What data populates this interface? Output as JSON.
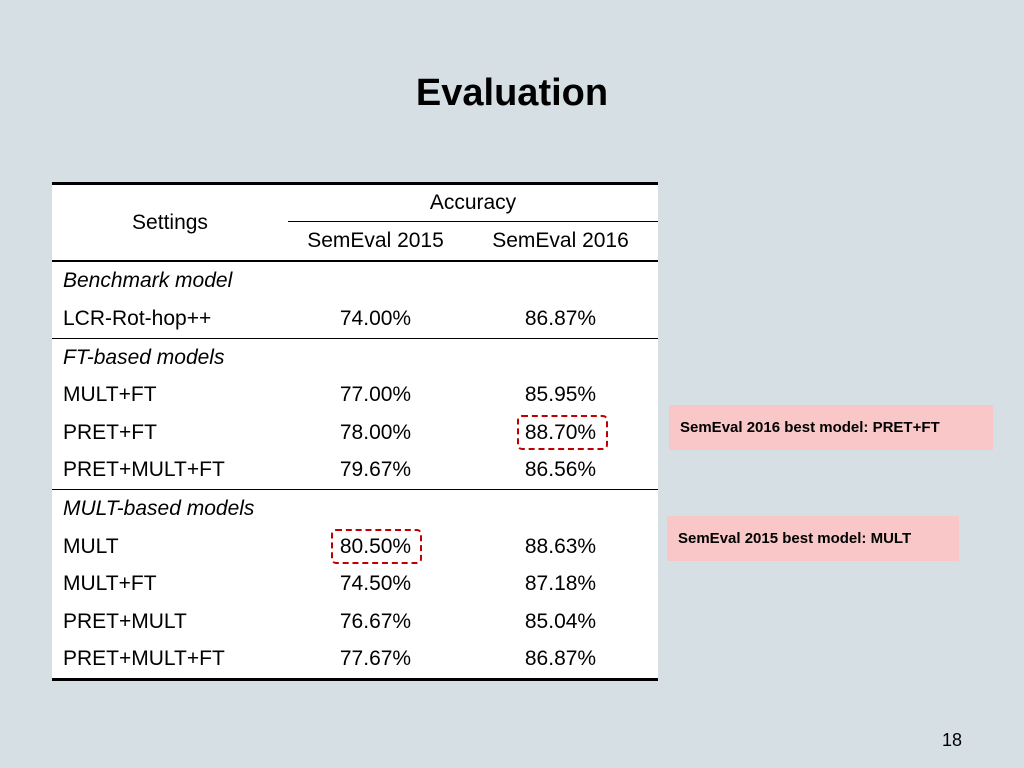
{
  "slide": {
    "title": "Evaluation",
    "page_number": "18"
  },
  "table": {
    "header": {
      "settings": "Settings",
      "accuracy": "Accuracy",
      "col1": "SemEval 2015",
      "col2": "SemEval 2016"
    },
    "groups": [
      {
        "label": "Benchmark model",
        "rows": [
          {
            "name": "LCR-Rot-hop++",
            "v2015": "74.00%",
            "v2016": "86.87%"
          }
        ]
      },
      {
        "label": "FT-based models",
        "rows": [
          {
            "name": "MULT+FT",
            "v2015": "77.00%",
            "v2016": "85.95%"
          },
          {
            "name": "PRET+FT",
            "v2015": "78.00%",
            "v2016": "88.70%"
          },
          {
            "name": "PRET+MULT+FT",
            "v2015": "79.67%",
            "v2016": "86.56%"
          }
        ]
      },
      {
        "label": "MULT-based models",
        "rows": [
          {
            "name": "MULT",
            "v2015": "80.50%",
            "v2016": "88.63%"
          },
          {
            "name": "MULT+FT",
            "v2015": "74.50%",
            "v2016": "87.18%"
          },
          {
            "name": "PRET+MULT",
            "v2015": "76.67%",
            "v2016": "85.04%"
          },
          {
            "name": "PRET+MULT+FT",
            "v2015": "77.67%",
            "v2016": "86.87%"
          }
        ]
      }
    ]
  },
  "notes": {
    "best2016": "SemEval 2016 best model: PRET+FT",
    "best2015": "SemEval 2015 best model: MULT"
  },
  "colors": {
    "background": "#d6dfe3",
    "highlight_border": "#c00000",
    "note_fill": "#f9c7c7"
  }
}
